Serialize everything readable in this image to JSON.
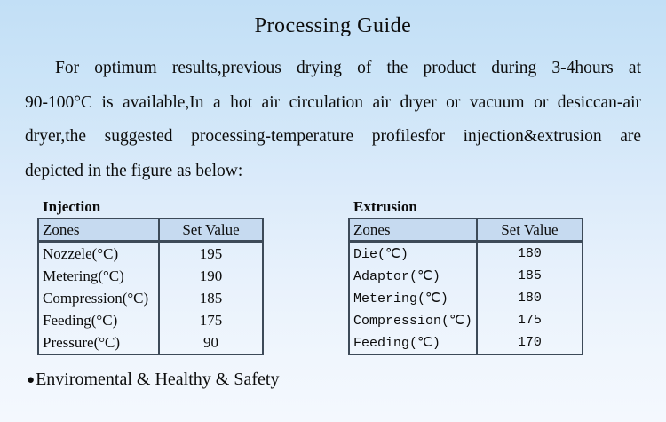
{
  "page": {
    "title": "Processing Guide",
    "paragraph_lines": [
      "For optimum results,previous drying of the product during 3-4hours at",
      "90-100°C is available,In a hot air circulation air dryer or vacuum or desiccan-air",
      "dryer,the suggested processing-temperature profilesfor injection&extrusion are",
      "depicted in the figure as below:"
    ],
    "bullet_glyph": "●",
    "bullet_text": "Enviromental & Healthy & Safety"
  },
  "tables": {
    "injection": {
      "label": "Injection",
      "headers": [
        "Zones",
        "Set Value"
      ],
      "rows": [
        [
          "Nozzele(°C)",
          "195"
        ],
        [
          "Metering(°C)",
          "190"
        ],
        [
          "Compression(°C)",
          "185"
        ],
        [
          "Feeding(°C)",
          "175"
        ],
        [
          "Pressure(°C)",
          "90"
        ]
      ]
    },
    "extrusion": {
      "label": "Extrusion",
      "headers": [
        "Zones",
        "Set Value"
      ],
      "rows": [
        [
          "Die(℃)",
          "180"
        ],
        [
          "Adaptor(℃)",
          "185"
        ],
        [
          "Metering(℃)",
          "180"
        ],
        [
          "Compression(℃)",
          "175"
        ],
        [
          "Feeding(℃)",
          "170"
        ]
      ]
    }
  },
  "colors": {
    "background_top": "#c2dff6",
    "background_bottom": "#f4f8fe",
    "table_header_bg": "#c6daf0",
    "table_border": "#3d4a58",
    "text": "#0c0c0c"
  }
}
